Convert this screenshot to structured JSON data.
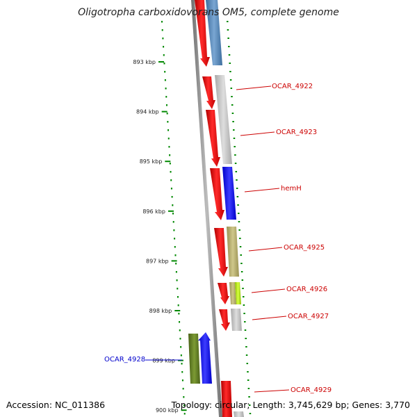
{
  "title": "Oligotropha carboxidovorans OM5, complete genome",
  "accession": "Accession: NC_011386",
  "stats": "Topology: circular; Length: 3,745,629 bp; Genes: 3,770",
  "ticks": [
    "893 kbp",
    "894 kbp",
    "895 kbp",
    "896 kbp",
    "897 kbp",
    "898 kbp",
    "899 kbp",
    "900 kbp"
  ],
  "gene_labels": [
    {
      "text": "OCAR_4922",
      "color": "#cc0000"
    },
    {
      "text": "OCAR_4923",
      "color": "#cc0000"
    },
    {
      "text": "hemH",
      "color": "#cc0000"
    },
    {
      "text": "OCAR_4925",
      "color": "#cc0000"
    },
    {
      "text": "OCAR_4926",
      "color": "#cc0000"
    },
    {
      "text": "OCAR_4927",
      "color": "#cc0000"
    },
    {
      "text": "OCAR_4929",
      "color": "#cc0000"
    },
    {
      "text": "OCAR_4928",
      "color": "#0000cc"
    }
  ],
  "colors": {
    "cds": "#ff0000",
    "tick": "#008800",
    "backbone": "#888888"
  }
}
